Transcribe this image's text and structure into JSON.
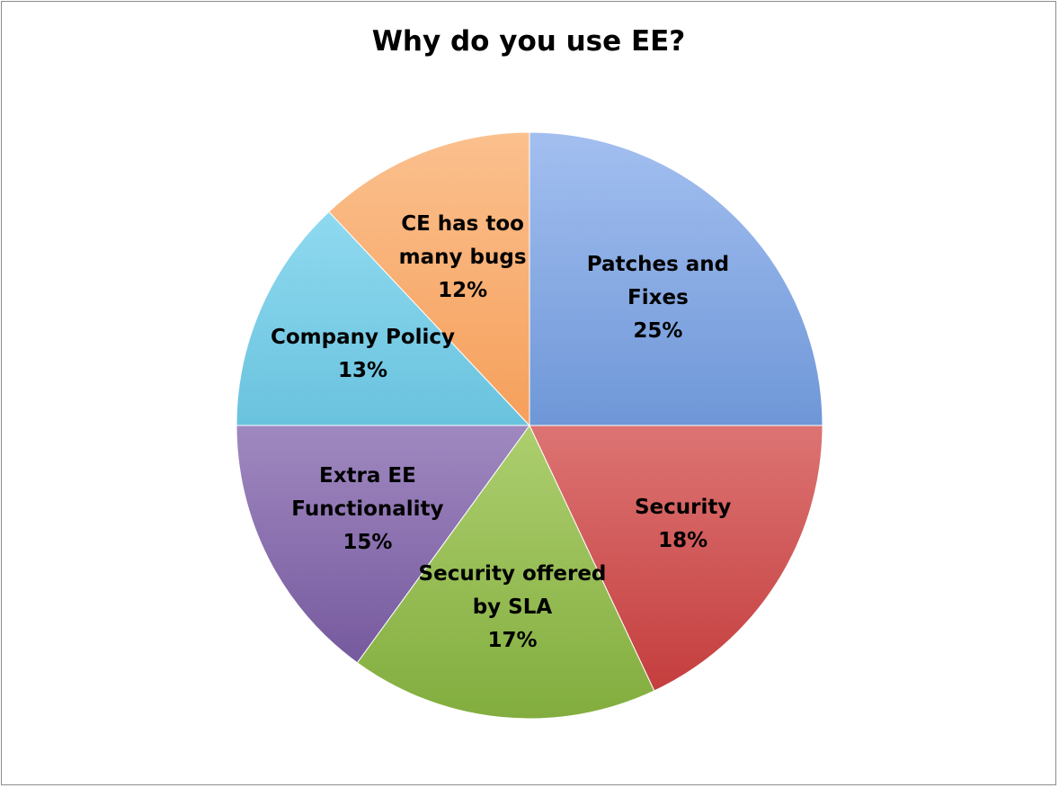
{
  "chart_data": {
    "type": "pie",
    "title": "Why do you use EE?",
    "slices": [
      {
        "label_lines": [
          "Patches and",
          "Fixes"
        ],
        "value": 25,
        "value_label": "25%",
        "color_light": "#a3bff0",
        "color_dark": "#3a6fbf"
      },
      {
        "label_lines": [
          "Security"
        ],
        "value": 18,
        "value_label": "18%",
        "color_light": "#f6b0ae",
        "color_dark": "#c23838"
      },
      {
        "label_lines": [
          "Security offered",
          "by SLA"
        ],
        "value": 17,
        "value_label": "17%",
        "color_light": "#d8f0a0",
        "color_dark": "#82ad3e"
      },
      {
        "label_lines": [
          "Extra EE",
          "Functionality"
        ],
        "value": 15,
        "value_label": "15%",
        "color_light": "#d3c3ea",
        "color_dark": "#6c4e96"
      },
      {
        "label_lines": [
          "Company Policy"
        ],
        "value": 13,
        "value_label": "13%",
        "color_light": "#9de2f7",
        "color_dark": "#36a3c4"
      },
      {
        "label_lines": [
          "CE has too",
          "many bugs"
        ],
        "value": 12,
        "value_label": "12%",
        "color_light": "#fbc08e",
        "color_dark": "#f07f28"
      }
    ]
  }
}
